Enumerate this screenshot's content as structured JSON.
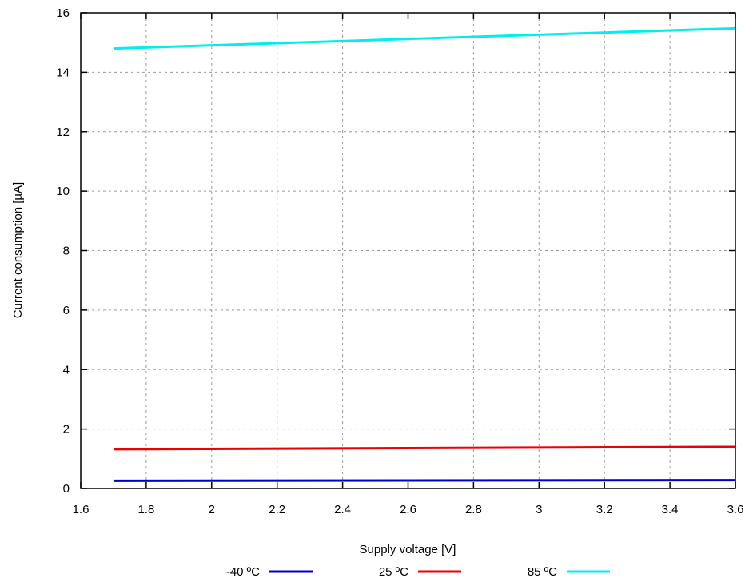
{
  "chart_data": {
    "type": "line",
    "xlabel": "Supply voltage [V]",
    "ylabel": "Current consumption [µA]",
    "xlim": [
      1.6,
      3.6
    ],
    "ylim": [
      0,
      16
    ],
    "xticks": [
      "1.6",
      "1.8",
      "2",
      "2.2",
      "2.4",
      "2.6",
      "2.8",
      "3",
      "3.2",
      "3.4",
      "3.6"
    ],
    "yticks": [
      "0",
      "2",
      "4",
      "6",
      "8",
      "10",
      "12",
      "14",
      "16"
    ],
    "grid": true,
    "legend_position": "bottom",
    "series": [
      {
        "name": "-40 ºC",
        "color": "#0000cc",
        "x": [
          1.7,
          3.6
        ],
        "y": [
          0.26,
          0.28
        ]
      },
      {
        "name": "25 ºC",
        "color": "#ee0000",
        "x": [
          1.7,
          3.6
        ],
        "y": [
          1.32,
          1.4
        ]
      },
      {
        "name": "85 ºC",
        "color": "#00eeee",
        "x": [
          1.7,
          3.6
        ],
        "y": [
          14.8,
          15.48
        ]
      }
    ]
  }
}
